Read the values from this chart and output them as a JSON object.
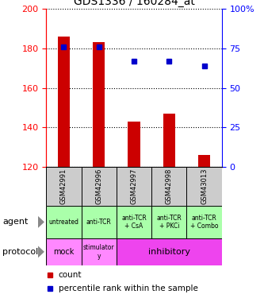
{
  "title": "GDS1336 / 160284_at",
  "samples": [
    "GSM42991",
    "GSM42996",
    "GSM42997",
    "GSM42998",
    "GSM43013"
  ],
  "bar_values": [
    186,
    183,
    143,
    147,
    126
  ],
  "bar_bottom": 120,
  "percentile_values": [
    76,
    76,
    67,
    67,
    64
  ],
  "ylim_left": [
    120,
    200
  ],
  "ylim_right": [
    0,
    100
  ],
  "yticks_left": [
    120,
    140,
    160,
    180,
    200
  ],
  "yticks_right": [
    0,
    25,
    50,
    75,
    100
  ],
  "bar_color": "#cc0000",
  "dot_color": "#0000cc",
  "agent_labels": [
    "untreated",
    "anti-TCR",
    "anti-TCR\n+ CsA",
    "anti-TCR\n+ PKCi",
    "anti-TCR\n+ Combo"
  ],
  "agent_color": "#aaffaa",
  "protocol_mock_color": "#ff88ff",
  "protocol_stim_color": "#ff88ff",
  "protocol_inhib_color": "#ee44ee",
  "sample_bg_color": "#cccccc",
  "legend_count_color": "#cc0000",
  "legend_pct_color": "#0000cc",
  "arrow_color": "#888888"
}
